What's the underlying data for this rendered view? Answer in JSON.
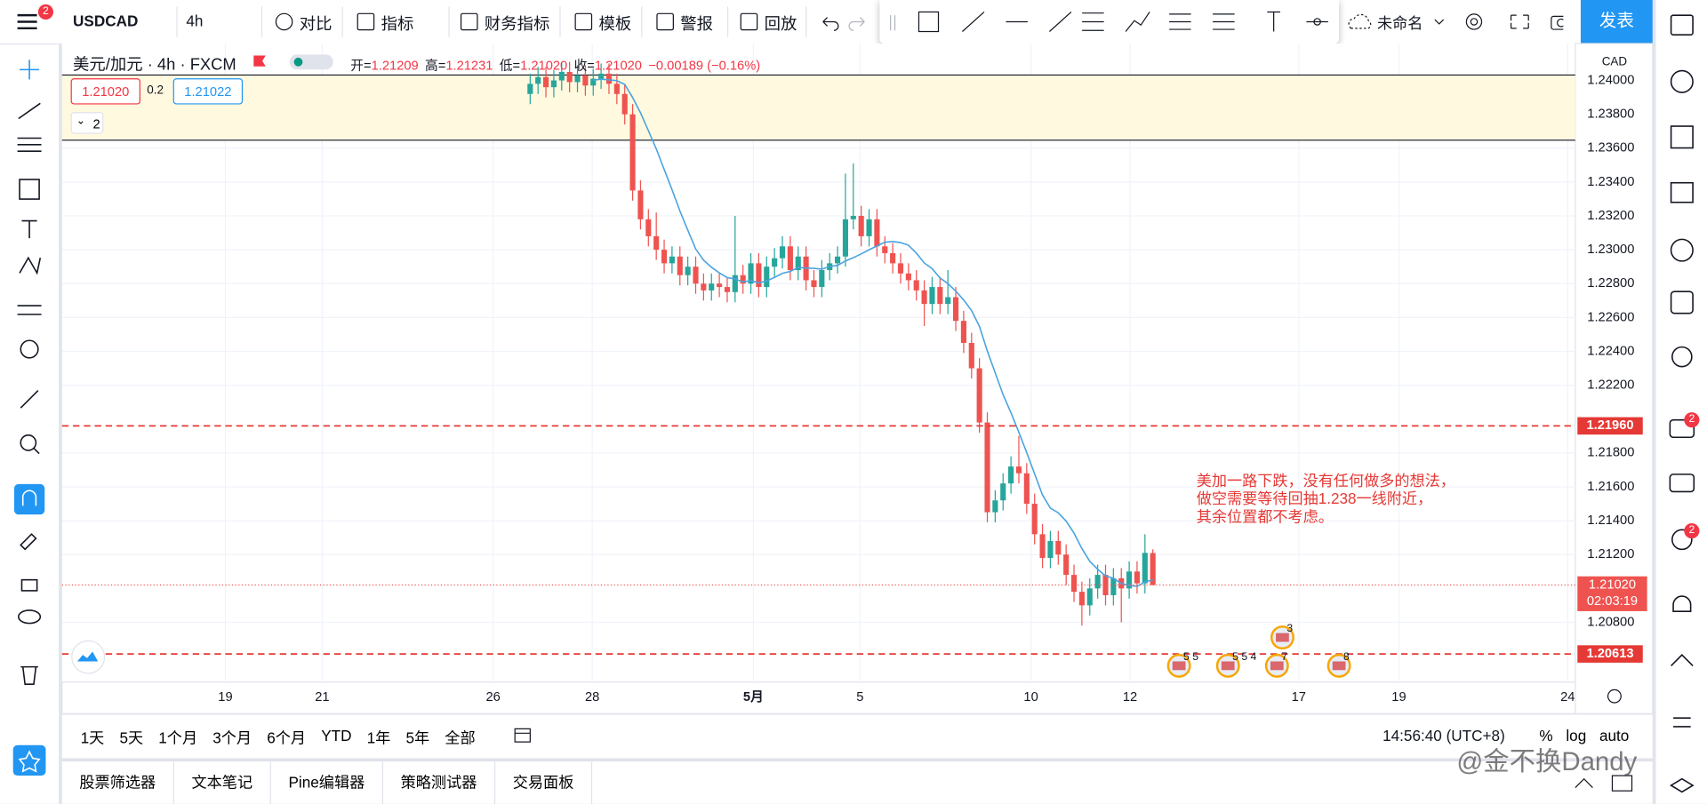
{
  "toolbar": {
    "menu_badge": "2",
    "symbol": "USDCAD",
    "interval": "4h",
    "buttons": [
      "对比",
      "指标",
      "财务指标",
      "模板",
      "警报",
      "回放"
    ],
    "layout_name": "未命名",
    "publish": "发表"
  },
  "legend": {
    "title": "美元/加元 · 4h · FXCM",
    "ohlc": [
      {
        "label": "开=",
        "value": "1.21209"
      },
      {
        "label": "高=",
        "value": "1.21231"
      },
      {
        "label": "低=",
        "value": "1.21020"
      },
      {
        "label": "收=",
        "value": "1.21020"
      }
    ],
    "change": "−0.00189 (−0.16%)"
  },
  "order_panel": {
    "sell": "1.21020",
    "spread": "0.2",
    "buy": "1.21022",
    "collapse": "2"
  },
  "chart": {
    "currency": "CAD",
    "ylim": [
      1.20447,
      1.24218
    ],
    "yticks": [
      {
        "value": 1.24,
        "label": "1.24000"
      },
      {
        "value": 1.238,
        "label": "1.23800"
      },
      {
        "value": 1.236,
        "label": "1.23600"
      },
      {
        "value": 1.234,
        "label": "1.23400"
      },
      {
        "value": 1.232,
        "label": "1.23200"
      },
      {
        "value": 1.23,
        "label": "1.23000"
      },
      {
        "value": 1.228,
        "label": "1.22800"
      },
      {
        "value": 1.226,
        "label": "1.22600"
      },
      {
        "value": 1.224,
        "label": "1.22400"
      },
      {
        "value": 1.222,
        "label": "1.22200"
      },
      {
        "value": 1.218,
        "label": "1.21800"
      },
      {
        "value": 1.216,
        "label": "1.21600"
      },
      {
        "value": 1.214,
        "label": "1.21400"
      },
      {
        "value": 1.212,
        "label": "1.21200"
      },
      {
        "value": 1.208,
        "label": "1.20800"
      }
    ],
    "zone": [
      1.23647,
      1.24032
    ],
    "lines": [
      {
        "value": 1.2196,
        "label": "1.21960"
      },
      {
        "value": 1.20613,
        "label": "1.20613"
      }
    ],
    "last": {
      "value": 1.2102,
      "label": "1.21020",
      "countdown": "02:03:19"
    },
    "xlabels": [
      "19",
      "21",
      "26",
      "28",
      "5月",
      "5",
      "10",
      "12",
      "17",
      "19",
      "24"
    ],
    "annotation": [
      "美加一路下跌，没有任何做多的想法，",
      "做空需要等待回抽1.238一线附近，",
      "其余位置都不考虑。"
    ],
    "events": [
      "5 5",
      "5 5 4",
      "3",
      "7",
      "8"
    ],
    "candles": [
      [
        1.2392,
        1.2404,
        1.2386,
        1.2398
      ],
      [
        1.2398,
        1.2408,
        1.2392,
        1.2402
      ],
      [
        1.2402,
        1.2408,
        1.239,
        1.2396
      ],
      [
        1.2396,
        1.2406,
        1.239,
        1.24
      ],
      [
        1.24,
        1.2411,
        1.2394,
        1.2405
      ],
      [
        1.2405,
        1.2411,
        1.2393,
        1.2399
      ],
      [
        1.2399,
        1.2409,
        1.2393,
        1.2403
      ],
      [
        1.2403,
        1.2409,
        1.2391,
        1.2397
      ],
      [
        1.2397,
        1.2407,
        1.2391,
        1.2401
      ],
      [
        1.2401,
        1.241,
        1.2395,
        1.2404
      ],
      [
        1.2404,
        1.241,
        1.2392,
        1.2398
      ],
      [
        1.2398,
        1.2404,
        1.2386,
        1.2392
      ],
      [
        1.2392,
        1.2398,
        1.2374,
        1.238
      ],
      [
        1.238,
        1.2386,
        1.2329,
        1.2335
      ],
      [
        1.2335,
        1.2341,
        1.2312,
        1.2318
      ],
      [
        1.2318,
        1.2324,
        1.2302,
        1.2308
      ],
      [
        1.2308,
        1.2322,
        1.2294,
        1.23
      ],
      [
        1.23,
        1.2306,
        1.2286,
        1.2292
      ],
      [
        1.2292,
        1.2302,
        1.2286,
        1.2296
      ],
      [
        1.2296,
        1.2302,
        1.2279,
        1.2285
      ],
      [
        1.2285,
        1.2296,
        1.2279,
        1.229
      ],
      [
        1.229,
        1.2296,
        1.2274,
        1.228
      ],
      [
        1.228,
        1.2286,
        1.227,
        1.2276
      ],
      [
        1.2276,
        1.2286,
        1.227,
        1.228
      ],
      [
        1.228,
        1.2286,
        1.2272,
        1.2278
      ],
      [
        1.2278,
        1.2284,
        1.2269,
        1.2275
      ],
      [
        1.2275,
        1.232,
        1.2269,
        1.2285
      ],
      [
        1.2285,
        1.2291,
        1.2274,
        1.228
      ],
      [
        1.228,
        1.2298,
        1.2274,
        1.2292
      ],
      [
        1.2292,
        1.2298,
        1.2272,
        1.2278
      ],
      [
        1.2278,
        1.2296,
        1.2272,
        1.229
      ],
      [
        1.229,
        1.2301,
        1.2284,
        1.2295
      ],
      [
        1.2295,
        1.2308,
        1.2289,
        1.2302
      ],
      [
        1.2302,
        1.2308,
        1.2282,
        1.2288
      ],
      [
        1.2288,
        1.2302,
        1.2282,
        1.2296
      ],
      [
        1.2296,
        1.2302,
        1.2276,
        1.2282
      ],
      [
        1.2282,
        1.2288,
        1.2272,
        1.2278
      ],
      [
        1.2278,
        1.2294,
        1.2272,
        1.2288
      ],
      [
        1.2288,
        1.2298,
        1.2282,
        1.2292
      ],
      [
        1.2292,
        1.2302,
        1.2286,
        1.2296
      ],
      [
        1.2296,
        1.2345,
        1.229,
        1.2318
      ],
      [
        1.2318,
        1.2351,
        1.2312,
        1.232
      ],
      [
        1.232,
        1.2326,
        1.2302,
        1.2308
      ],
      [
        1.2308,
        1.2324,
        1.2302,
        1.2318
      ],
      [
        1.2318,
        1.2324,
        1.2296,
        1.2302
      ],
      [
        1.2302,
        1.2308,
        1.2292,
        1.2298
      ],
      [
        1.2298,
        1.2304,
        1.2286,
        1.2292
      ],
      [
        1.2292,
        1.2298,
        1.228,
        1.2286
      ],
      [
        1.2286,
        1.2292,
        1.2276,
        1.2282
      ],
      [
        1.2282,
        1.2288,
        1.227,
        1.2276
      ],
      [
        1.2276,
        1.2282,
        1.2255,
        1.2268
      ],
      [
        1.2268,
        1.2284,
        1.2262,
        1.2278
      ],
      [
        1.2278,
        1.2284,
        1.2262,
        1.2268
      ],
      [
        1.2268,
        1.2288,
        1.2262,
        1.2272
      ],
      [
        1.2272,
        1.2278,
        1.2252,
        1.2258
      ],
      [
        1.2258,
        1.2264,
        1.2239,
        1.2245
      ],
      [
        1.2245,
        1.2251,
        1.2224,
        1.223
      ],
      [
        1.223,
        1.2236,
        1.2192,
        1.2198
      ],
      [
        1.2198,
        1.2204,
        1.2139,
        1.2145
      ],
      [
        1.2145,
        1.2158,
        1.2139,
        1.2152
      ],
      [
        1.2152,
        1.2168,
        1.2146,
        1.2162
      ],
      [
        1.2162,
        1.2178,
        1.2156,
        1.2172
      ],
      [
        1.2172,
        1.219,
        1.2162,
        1.2168
      ],
      [
        1.2168,
        1.2174,
        1.2144,
        1.215
      ],
      [
        1.215,
        1.2156,
        1.2126,
        1.2132
      ],
      [
        1.2132,
        1.2138,
        1.2112,
        1.2118
      ],
      [
        1.2118,
        1.2134,
        1.2112,
        1.2128
      ],
      [
        1.2128,
        1.2134,
        1.2114,
        1.212
      ],
      [
        1.212,
        1.2126,
        1.2102,
        1.2108
      ],
      [
        1.2108,
        1.2114,
        1.2092,
        1.2098
      ],
      [
        1.2098,
        1.2104,
        1.2078,
        1.209
      ],
      [
        1.209,
        1.2106,
        1.2084,
        1.21
      ],
      [
        1.21,
        1.2114,
        1.2094,
        1.2108
      ],
      [
        1.2108,
        1.2114,
        1.209,
        1.2096
      ],
      [
        1.2096,
        1.2112,
        1.209,
        1.2106
      ],
      [
        1.2106,
        1.2112,
        1.208,
        1.21
      ],
      [
        1.21,
        1.2116,
        1.2094,
        1.211
      ],
      [
        1.211,
        1.2116,
        1.2097,
        1.2103
      ],
      [
        1.2103,
        1.2132,
        1.2097,
        1.2121
      ],
      [
        1.21209,
        1.21231,
        1.2102,
        1.2102
      ]
    ]
  },
  "ranges": [
    "1天",
    "5天",
    "1个月",
    "3个月",
    "6个月",
    "YTD",
    "1年",
    "5年",
    "全部"
  ],
  "clock": "14:56:40 (UTC+8)",
  "scale_options": [
    "%",
    "log",
    "auto"
  ],
  "tabs": [
    "股票筛选器",
    "文本笔记",
    "Pine编辑器",
    "策略测试器",
    "交易面板"
  ],
  "right_badges": [
    "2",
    "2"
  ],
  "watermark": "@金不换Dandy"
}
